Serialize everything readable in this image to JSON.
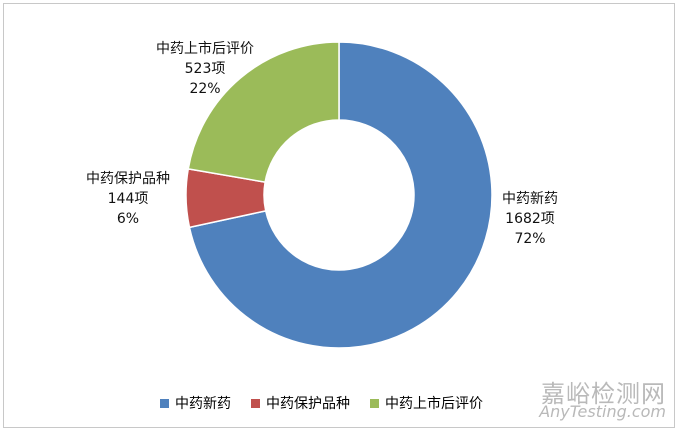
{
  "chart_data": {
    "type": "pie",
    "categories": [
      "中药新药",
      "中药保护品种",
      "中药上市后评价"
    ],
    "values": [
      1682,
      144,
      523
    ],
    "counts": [
      "1682项",
      "144项",
      "523项"
    ],
    "percents": [
      "72%",
      "6%",
      "22%"
    ],
    "colors": [
      "#4f81bd",
      "#c0504d",
      "#9bbb59"
    ],
    "legend_position": "bottom"
  },
  "watermark": {
    "main": "嘉峪检测网",
    "sub": "AnyTesting.com"
  }
}
